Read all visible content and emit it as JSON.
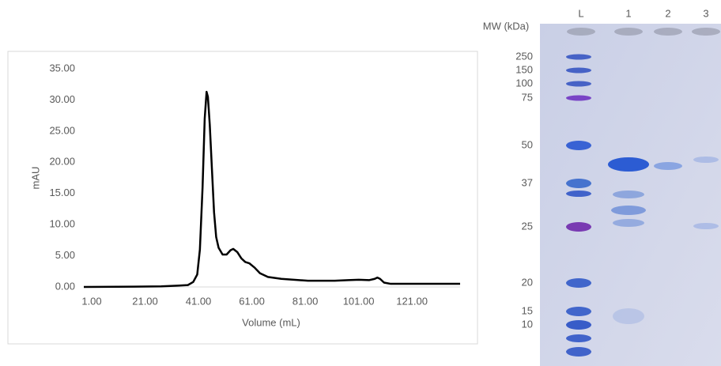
{
  "chart_data": {
    "type": "line",
    "xlabel": "Volume (mL)",
    "ylabel": "mAU",
    "color": "#000000",
    "x": [
      1,
      20,
      30,
      36,
      40,
      42,
      43.5,
      44.5,
      45.5,
      46.3,
      47,
      47.5,
      48.2,
      49,
      49.8,
      50.6,
      51.5,
      53,
      54.5,
      56,
      57,
      58.5,
      60,
      61.5,
      63,
      65,
      67,
      70,
      75,
      85,
      95,
      100,
      104,
      108,
      110,
      111,
      112,
      113.5,
      116,
      125,
      142
    ],
    "values": [
      0,
      0.05,
      0.1,
      0.2,
      0.3,
      0.8,
      2,
      6,
      16,
      27,
      31.3,
      30.5,
      26,
      19,
      12,
      8,
      6.3,
      5.2,
      5.2,
      5.9,
      6.1,
      5.6,
      4.6,
      4.0,
      3.8,
      3.1,
      2.2,
      1.6,
      1.3,
      1.0,
      1.0,
      1.1,
      1.15,
      1.1,
      1.3,
      1.5,
      1.3,
      0.7,
      0.5,
      0.5,
      0.5
    ],
    "xlim": [
      1,
      142
    ],
    "ylim": [
      0,
      35
    ],
    "xticks": [
      {
        "value": 1,
        "label": "1.00"
      },
      {
        "value": 21,
        "label": "21.00"
      },
      {
        "value": 41,
        "label": "41.00"
      },
      {
        "value": 61,
        "label": "61.00"
      },
      {
        "value": 81,
        "label": "81.00"
      },
      {
        "value": 101,
        "label": "101.00"
      },
      {
        "value": 121,
        "label": "121.00"
      }
    ],
    "yticks": [
      {
        "value": 0,
        "label": "0.00"
      },
      {
        "value": 5,
        "label": "5.00"
      },
      {
        "value": 10,
        "label": "10.00"
      },
      {
        "value": 15,
        "label": "15.00"
      },
      {
        "value": 20,
        "label": "20.00"
      },
      {
        "value": 25,
        "label": "25.00"
      },
      {
        "value": 30,
        "label": "30.00"
      },
      {
        "value": 35,
        "label": "35.00"
      }
    ]
  },
  "gel": {
    "mw_label": "MW (kDa)",
    "lanes": [
      "L",
      "1",
      "2",
      "3"
    ],
    "markers": [
      "250",
      "150",
      "100",
      "75",
      "50",
      "37",
      "25",
      "20",
      "15",
      "10"
    ]
  }
}
